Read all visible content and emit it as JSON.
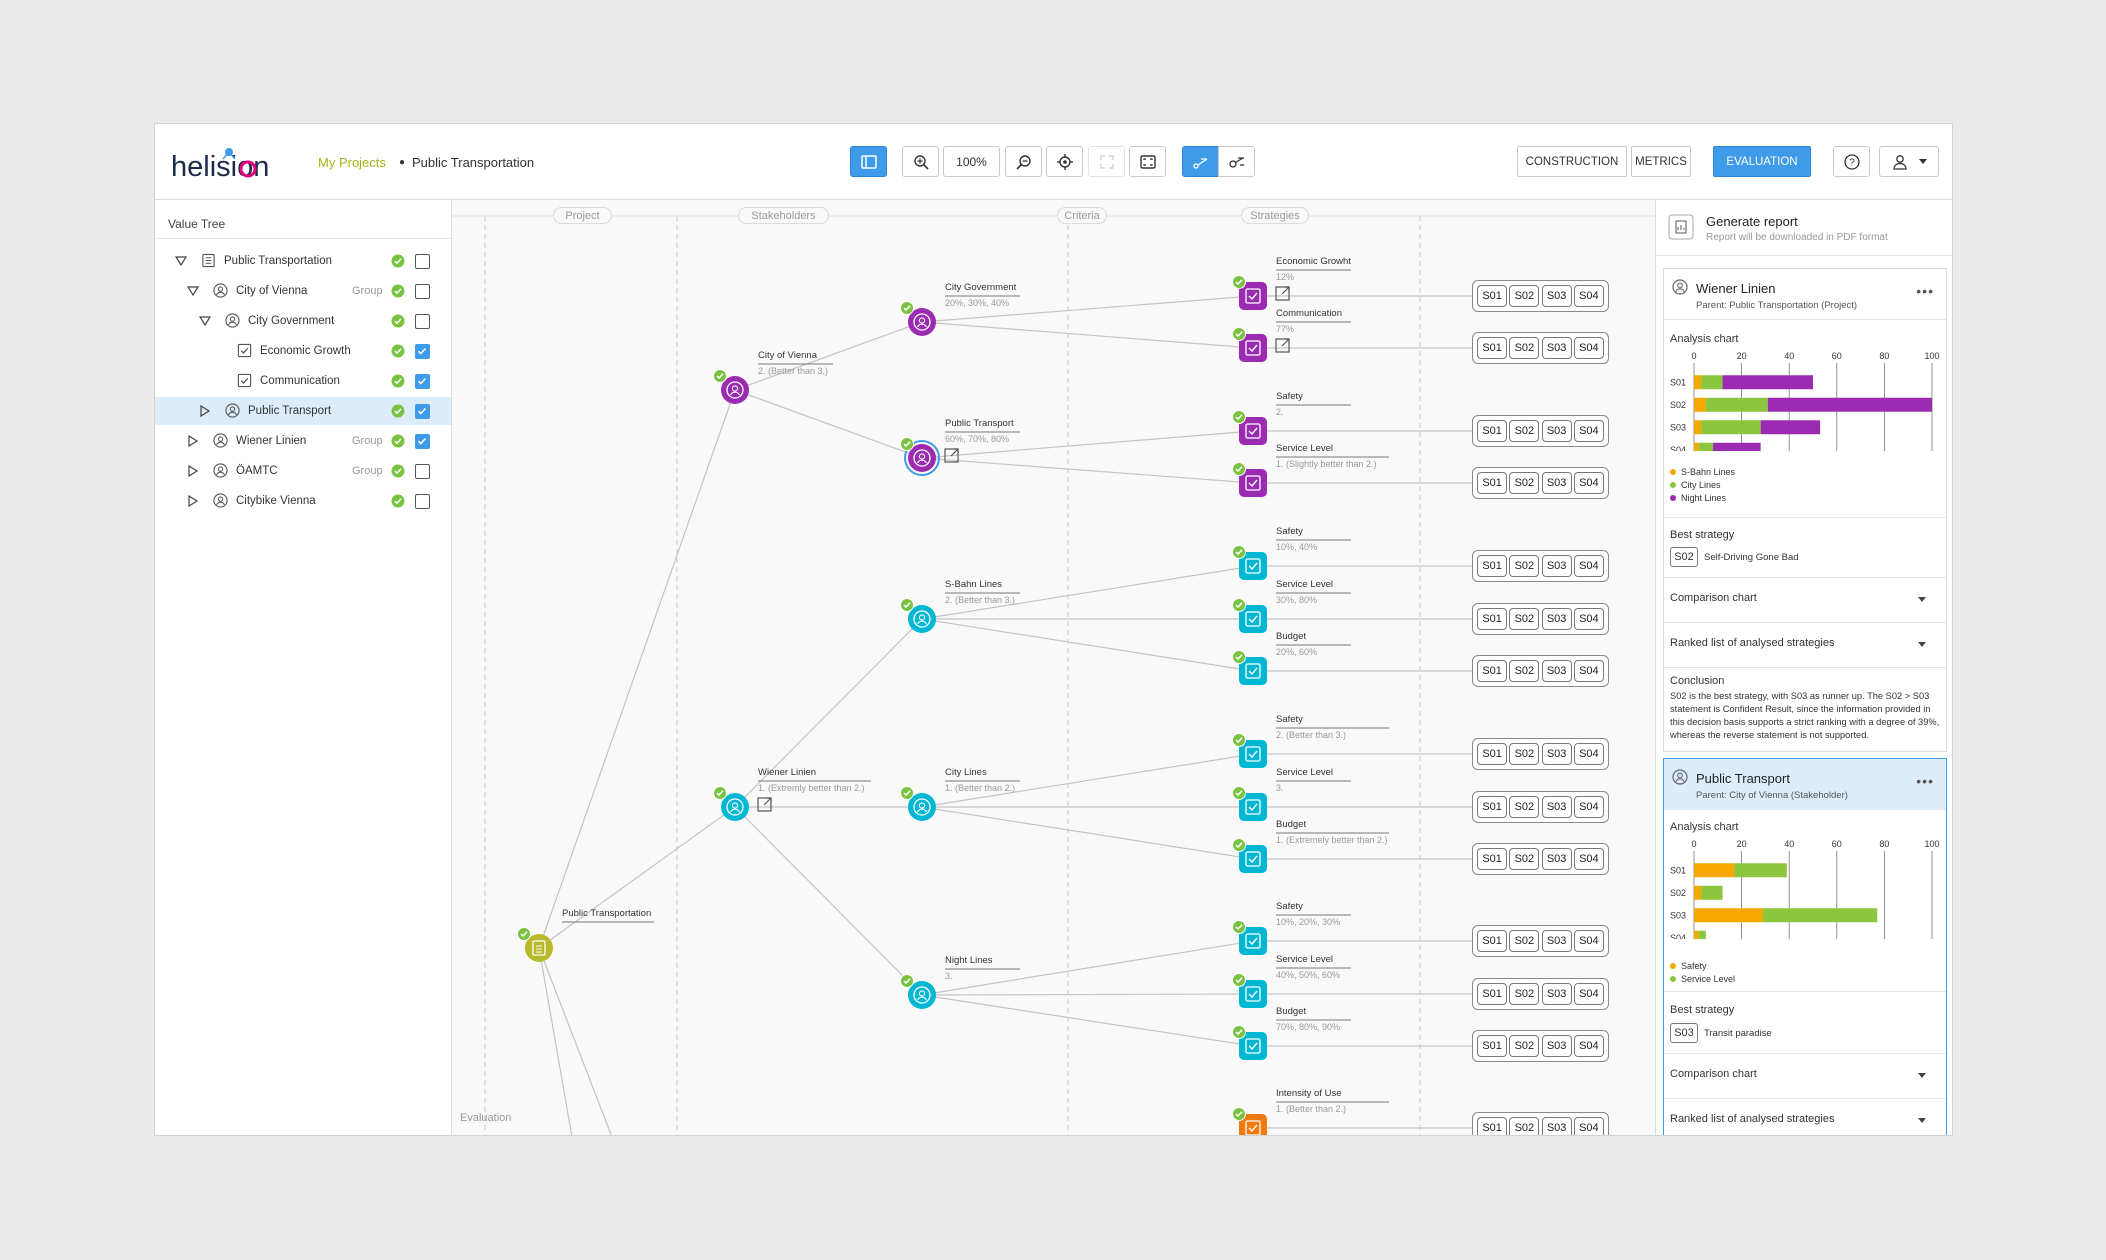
{
  "header": {
    "logo_text": "helision",
    "breadcrumb_root": "My Projects",
    "breadcrumb_current": "Public Transportation",
    "zoom_level": "100%",
    "modes": [
      "CONSTRUCTION",
      "METRICS",
      "EVALUATION"
    ],
    "active_mode": "EVALUATION",
    "icons": [
      "sidebar-toggle-icon",
      "zoom-in-icon",
      "zoom-out-icon",
      "locate-icon",
      "expand-icon",
      "fit-screen-icon",
      "tree-view-icon",
      "key-view-icon",
      "help-icon",
      "user-icon"
    ]
  },
  "value_tree": {
    "title": "Value Tree",
    "items": [
      {
        "label": "Public Transportation",
        "group": "",
        "checked": false,
        "expanded": true,
        "icon": "document-icon",
        "level": 0
      },
      {
        "label": "City of Vienna",
        "group": "Group",
        "checked": false,
        "expanded": true,
        "icon": "person-icon",
        "level": 1
      },
      {
        "label": "City Government",
        "group": "",
        "checked": false,
        "expanded": true,
        "icon": "person-icon",
        "level": 2
      },
      {
        "label": "Economic Growth",
        "group": "",
        "checked": true,
        "expanded": null,
        "icon": "checkbox-icon",
        "level": 3
      },
      {
        "label": "Communication",
        "group": "",
        "checked": true,
        "expanded": null,
        "icon": "checkbox-icon",
        "level": 3
      },
      {
        "label": "Public Transport",
        "group": "",
        "checked": true,
        "expanded": false,
        "icon": "person-icon",
        "level": 2,
        "selected": true
      },
      {
        "label": "Wiener Linien",
        "group": "Group",
        "checked": true,
        "expanded": false,
        "icon": "person-icon",
        "level": 1
      },
      {
        "label": "ÖAMTC",
        "group": "Group",
        "checked": false,
        "expanded": false,
        "icon": "person-icon",
        "level": 1
      },
      {
        "label": "Citybike Vienna",
        "group": "",
        "checked": false,
        "expanded": false,
        "icon": "person-icon",
        "level": 1
      }
    ]
  },
  "canvas": {
    "columns": [
      "Project",
      "Stakeholders",
      "Criteria",
      "Strategies"
    ],
    "footer_label": "Evaluation",
    "strategy_labels": [
      "S01",
      "S02",
      "S03",
      "S04"
    ],
    "colors": {
      "purple": "#9b2bb0",
      "teal": "#00b7d3",
      "olive": "#b5b92a",
      "orange": "#f07a0e",
      "check": "#7cc242"
    },
    "project": {
      "label": "Public Transportation"
    },
    "stakeholders": [
      {
        "label": "City of Vienna",
        "sub": "2. (Better than 3.)",
        "color": "purple"
      },
      {
        "label": "City Government",
        "sub": "20%, 30%, 40%",
        "color": "purple"
      },
      {
        "label": "Public Transport",
        "sub": "60%, 70%, 80%",
        "color": "purple"
      },
      {
        "label": "Wiener Linien",
        "sub": "1. (Extremly better than 2.)",
        "color": "teal"
      },
      {
        "label": "S-Bahn Lines",
        "sub": "2. (Better than 3.)",
        "color": "teal"
      },
      {
        "label": "City Lines",
        "sub": "1. (Better than 2.)",
        "color": "teal"
      },
      {
        "label": "Night Lines",
        "sub": "3.",
        "color": "teal"
      }
    ],
    "criteria": [
      {
        "label": "Economic Growht",
        "sub": "12%",
        "color": "purple"
      },
      {
        "label": "Communication",
        "sub": "77%",
        "color": "purple"
      },
      {
        "label": "Safety",
        "sub": "2.",
        "color": "purple"
      },
      {
        "label": "Service Level",
        "sub": "1. (Slightly better than 2.)",
        "color": "purple"
      },
      {
        "label": "Safety",
        "sub": "10%, 40%",
        "color": "teal"
      },
      {
        "label": "Service Level",
        "sub": "30%, 80%",
        "color": "teal"
      },
      {
        "label": "Budget",
        "sub": "20%, 60%",
        "color": "teal"
      },
      {
        "label": "Safety",
        "sub": "2. (Better than 3.)",
        "color": "teal"
      },
      {
        "label": "Service Level",
        "sub": "3.",
        "color": "teal"
      },
      {
        "label": "Budget",
        "sub": "1. (Extremely better than 2.)",
        "color": "teal"
      },
      {
        "label": "Safety",
        "sub": "10%, 20%, 30%",
        "color": "teal"
      },
      {
        "label": "Service Level",
        "sub": "40%, 50%, 60%",
        "color": "teal"
      },
      {
        "label": "Budget",
        "sub": "70%, 80%, 90%",
        "color": "teal"
      },
      {
        "label": "Intensity of Use",
        "sub": "1. (Better than 2.)",
        "color": "orange"
      }
    ]
  },
  "report": {
    "title": "Generate report",
    "subtitle": "Report will be downloaded in PDF format",
    "cards": [
      {
        "title": "Wiener Linien",
        "parent": "Parent: Public Transportation (Project)",
        "analysis_label": "Analysis chart",
        "best_label": "Best strategy",
        "best_code": "S02",
        "best_name": "Self-Driving Gone Bad",
        "comparison_label": "Comparison chart",
        "ranked_label": "Ranked list of analysed strategies",
        "conclusion_title": "Conclusion",
        "conclusion": "S02 is the best strategy, with S03 as runner up. The S02 > S03 statement is Confident Result, since the information provided in this decision basis supports a strict ranking with a degree of 39%, whereas the reverse statement is not supported."
      },
      {
        "title": "Public Transport",
        "parent": "Parent: City of Vienna (Stakeholder)",
        "analysis_label": "Analysis chart",
        "best_label": "Best strategy",
        "best_code": "S03",
        "best_name": "Transit paradise",
        "comparison_label": "Comparison chart",
        "ranked_label": "Ranked list of analysed strategies"
      }
    ]
  },
  "chart_data": [
    {
      "type": "bar",
      "stacked": true,
      "orientation": "horizontal",
      "categories": [
        "S01",
        "S02",
        "S03",
        "S04"
      ],
      "xlim": [
        0,
        100
      ],
      "xticks": [
        0,
        20,
        40,
        60,
        80,
        100
      ],
      "series": [
        {
          "name": "S-Bahn Lines",
          "color": "#f5a800",
          "values": [
            3,
            5,
            3,
            2
          ]
        },
        {
          "name": "City Lines",
          "color": "#8cc63f",
          "values": [
            9,
            26,
            25,
            6
          ]
        },
        {
          "name": "Night Lines",
          "color": "#9b2bb0",
          "values": [
            38,
            69,
            25,
            20
          ]
        }
      ]
    },
    {
      "type": "bar",
      "stacked": true,
      "orientation": "horizontal",
      "categories": [
        "S01",
        "S02",
        "S03",
        "S04"
      ],
      "xlim": [
        0,
        100
      ],
      "xticks": [
        0,
        20,
        40,
        60,
        80,
        100
      ],
      "series": [
        {
          "name": "Safety",
          "color": "#f5a800",
          "values": [
            17,
            3,
            29,
            2
          ]
        },
        {
          "name": "Service Level",
          "color": "#8cc63f",
          "values": [
            22,
            9,
            48,
            3
          ]
        }
      ]
    }
  ]
}
